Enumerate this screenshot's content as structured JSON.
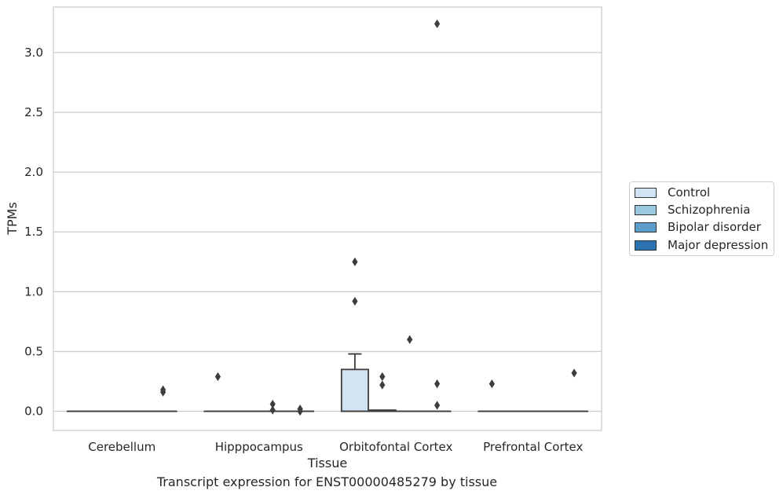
{
  "chart_data": {
    "type": "box",
    "title": "Transcript expression for ENST00000485279 by tissue",
    "xlabel": "Tissue",
    "ylabel": "TPMs",
    "categories": [
      "Cerebellum",
      "Hipppocampus",
      "Orbitofontal Cortex",
      "Prefrontal Cortex"
    ],
    "ylim": [
      -0.16,
      3.38
    ],
    "yticks": [
      0.0,
      0.5,
      1.0,
      1.5,
      2.0,
      2.5,
      3.0
    ],
    "ytick_labels": [
      "0.0",
      "0.5",
      "1.0",
      "1.5",
      "2.0",
      "2.5",
      "3.0"
    ],
    "grid": "horizontal",
    "legend_position": "right",
    "series": [
      {
        "name": "Control",
        "color": "#d2e3f3",
        "boxes": [
          {
            "category": "Cerebellum",
            "q1": 0,
            "median": 0,
            "q3": 0,
            "whisker_low": 0,
            "whisker_high": 0,
            "outliers": []
          },
          {
            "category": "Hipppocampus",
            "q1": 0,
            "median": 0,
            "q3": 0,
            "whisker_low": 0,
            "whisker_high": 0,
            "outliers": [
              0.29
            ]
          },
          {
            "category": "Orbitofontal Cortex",
            "q1": 0,
            "median": 0,
            "q3": 0.35,
            "whisker_low": 0,
            "whisker_high": 0.48,
            "outliers": [
              0.92,
              1.25
            ]
          },
          {
            "category": "Prefrontal Cortex",
            "q1": 0,
            "median": 0,
            "q3": 0,
            "whisker_low": 0,
            "whisker_high": 0,
            "outliers": [
              0.23
            ]
          }
        ]
      },
      {
        "name": "Schizophrenia",
        "color": "#9ac8e0",
        "boxes": [
          {
            "category": "Cerebellum",
            "q1": 0,
            "median": 0,
            "q3": 0,
            "whisker_low": 0,
            "whisker_high": 0,
            "outliers": []
          },
          {
            "category": "Hipppocampus",
            "q1": 0,
            "median": 0,
            "q3": 0,
            "whisker_low": 0,
            "whisker_high": 0,
            "outliers": []
          },
          {
            "category": "Orbitofontal Cortex",
            "q1": 0,
            "median": 0,
            "q3": 0.01,
            "whisker_low": 0,
            "whisker_high": 0.01,
            "outliers": [
              0.22,
              0.29
            ]
          },
          {
            "category": "Prefrontal Cortex",
            "q1": 0,
            "median": 0,
            "q3": 0,
            "whisker_low": 0,
            "whisker_high": 0,
            "outliers": []
          }
        ]
      },
      {
        "name": "Bipolar disorder",
        "color": "#5a9ec9",
        "boxes": [
          {
            "category": "Cerebellum",
            "q1": 0,
            "median": 0,
            "q3": 0,
            "whisker_low": 0,
            "whisker_high": 0,
            "outliers": []
          },
          {
            "category": "Hipppocampus",
            "q1": 0,
            "median": 0,
            "q3": 0,
            "whisker_low": 0,
            "whisker_high": 0,
            "outliers": [
              0.01,
              0.06
            ]
          },
          {
            "category": "Orbitofontal Cortex",
            "q1": 0,
            "median": 0,
            "q3": 0,
            "whisker_low": 0,
            "whisker_high": 0,
            "outliers": [
              0.6
            ]
          },
          {
            "category": "Prefrontal Cortex",
            "q1": 0,
            "median": 0,
            "q3": 0,
            "whisker_low": 0,
            "whisker_high": 0,
            "outliers": []
          }
        ]
      },
      {
        "name": "Major depression",
        "color": "#2c72b1",
        "boxes": [
          {
            "category": "Cerebellum",
            "q1": 0,
            "median": 0,
            "q3": 0,
            "whisker_low": 0,
            "whisker_high": 0,
            "outliers": [
              0.16,
              0.18
            ]
          },
          {
            "category": "Hipppocampus",
            "q1": 0,
            "median": 0,
            "q3": 0,
            "whisker_low": 0,
            "whisker_high": 0,
            "outliers": [
              0.0,
              0.02
            ]
          },
          {
            "category": "Orbitofontal Cortex",
            "q1": 0,
            "median": 0,
            "q3": 0,
            "whisker_low": 0,
            "whisker_high": 0,
            "outliers": [
              0.05,
              0.23,
              3.24
            ]
          },
          {
            "category": "Prefrontal Cortex",
            "q1": 0,
            "median": 0,
            "q3": 0,
            "whisker_low": 0,
            "whisker_high": 0,
            "outliers": [
              0.32
            ]
          }
        ]
      }
    ]
  }
}
